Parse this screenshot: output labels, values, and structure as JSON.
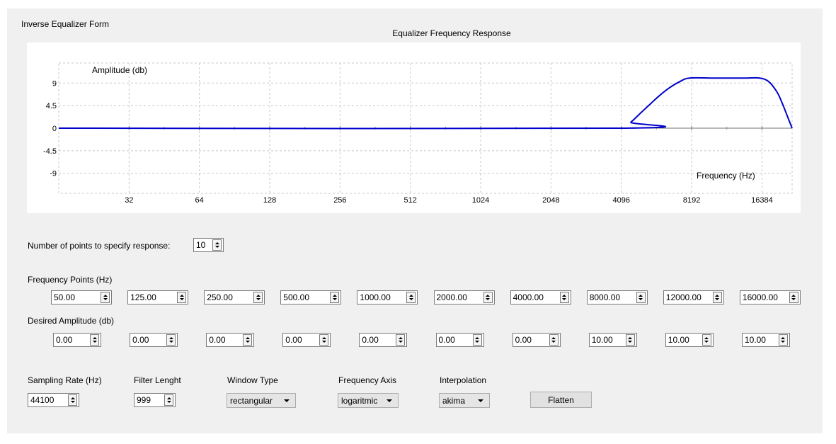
{
  "window": {
    "title": "Inverse Equalizer Form"
  },
  "chart_data": {
    "type": "line",
    "title": "Equalizer Frequency Response",
    "xlabel": "Frequency (Hz)",
    "ylabel": "Amplitude (db)",
    "x_scale": "log2",
    "xlim": [
      16,
      22050
    ],
    "ylim": [
      -13,
      13
    ],
    "x_ticks": [
      32,
      64,
      128,
      256,
      512,
      1024,
      2048,
      4096,
      8192,
      16384
    ],
    "y_ticks": [
      9,
      4.5,
      0,
      -4.5,
      -9
    ],
    "grid": true,
    "series": [
      {
        "color": "#0000cc",
        "x": [
          16,
          4096,
          4500,
          5000,
          5500,
          6000,
          6600,
          7300,
          8000,
          10000,
          12000,
          14000,
          16000,
          17500,
          19000,
          20000,
          21000,
          22050
        ],
        "y": [
          0,
          0,
          1.2,
          3.2,
          5.0,
          6.6,
          8.1,
          9.3,
          10,
          10,
          10,
          10,
          10,
          9.3,
          7.2,
          5.0,
          2.5,
          0
        ]
      }
    ]
  },
  "controls": {
    "points_label": "Number of points to specify response:",
    "points_value": "10",
    "freq_label": "Frequency Points (Hz)",
    "frequencies": [
      "50.00",
      "125.00",
      "250.00",
      "500.00",
      "1000.00",
      "2000.00",
      "4000.00",
      "8000.00",
      "12000.00",
      "16000.00"
    ],
    "amp_label": "Desired Amplitude (db)",
    "amplitudes": [
      "0.00",
      "0.00",
      "0.00",
      "0.00",
      "0.00",
      "0.00",
      "0.00",
      "10.00",
      "10.00",
      "10.00"
    ],
    "sampling_label": "Sampling Rate (Hz)",
    "sampling_value": "44100",
    "filter_label": "Filter Lenght",
    "filter_value": "999",
    "window_label": "Window Type",
    "window_value": "rectangular",
    "axis_label": "Frequency Axis",
    "axis_value": "logaritmic",
    "interp_label": "Interpolation",
    "interp_value": "akima",
    "flatten_label": "Flatten"
  }
}
